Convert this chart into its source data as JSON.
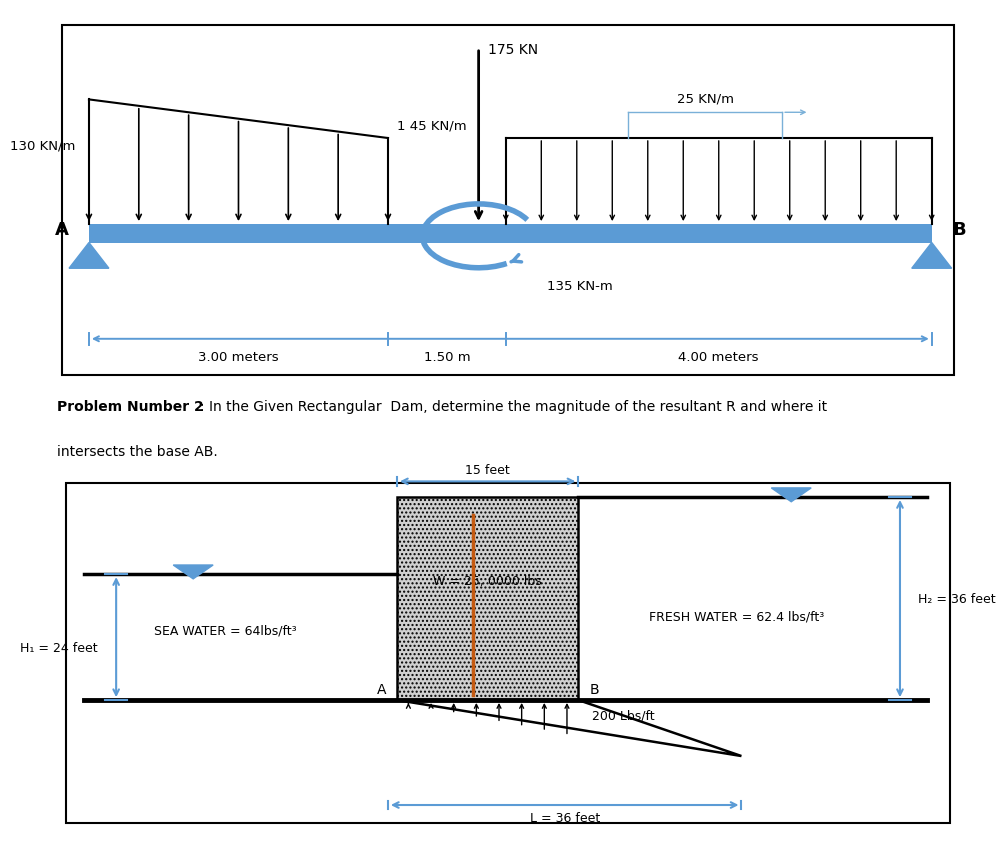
{
  "fig_width": 9.64,
  "fig_height": 8.58,
  "beam_color": "#5B9BD5",
  "moment_color": "#5B9BD5",
  "dim_color": "#5B9BD5",
  "orange_color": "#C55A11",
  "p1": {
    "label_130": "130 KN/m",
    "label_145": "1 45 KN/m",
    "label_175": "175 KN",
    "label_25": "25 KN/m",
    "label_A": "A",
    "label_B": "B",
    "label_moment": "135 KN-m",
    "dim1": "3.00 meters",
    "dim2": "1.50 m",
    "dim3": "4.00 meters"
  },
  "p2": {
    "bold_title": "Problem Number 2",
    "rest_title": ": In the Given Rectangular  Dam, determine the magnitude of the resultant R and where it",
    "line2": "intersects the base AB.",
    "label_15ft": "15 feet",
    "label_W": "W = 25, 0000 lbs",
    "label_H2": "H₂ = 36 feet",
    "label_sea": "SEA WATER = 64lbs/ft³",
    "label_fresh": "FRESH WATER = 62.4 lbs/ft³",
    "label_H1": "H₁ = 24 feet",
    "label_200": "200 Lbs/ft",
    "label_L": "L = 36 feet"
  }
}
